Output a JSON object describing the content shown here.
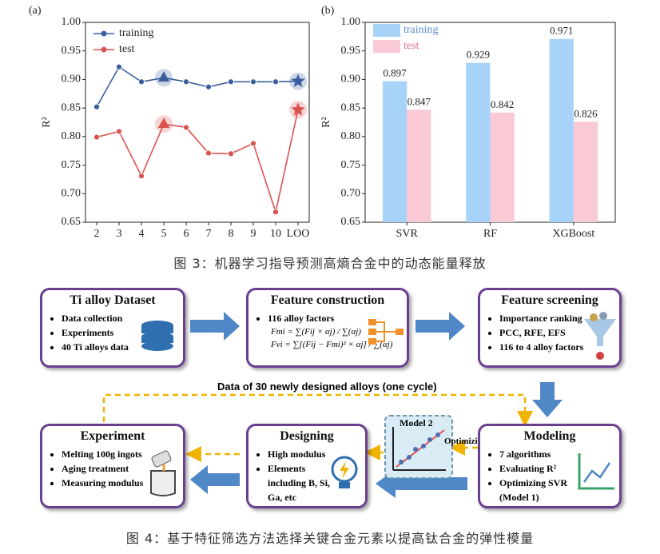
{
  "chart_data": [
    {
      "type": "line",
      "title": "(a)",
      "y_label": "R²",
      "categories": [
        "2",
        "3",
        "4",
        "5",
        "6",
        "7",
        "8",
        "9",
        "10",
        "LOO"
      ],
      "series": [
        {
          "name": "training",
          "color": "#3b5f9e",
          "values": [
            0.852,
            0.922,
            0.896,
            0.903,
            0.896,
            0.887,
            0.896,
            0.896,
            0.896,
            0.897
          ]
        },
        {
          "name": "test",
          "color": "#d9534f",
          "values": [
            0.799,
            0.809,
            0.731,
            0.822,
            0.816,
            0.771,
            0.77,
            0.788,
            0.668,
            0.847
          ]
        }
      ],
      "highlight_markers": [
        {
          "index": 3,
          "shape": "triangle"
        },
        {
          "index": 9,
          "shape": "star"
        }
      ],
      "ylim": [
        0.65,
        1.0
      ],
      "yticks": [
        0.65,
        {
          "value": 0.7,
          "label": "0.70"
        },
        0.75,
        {
          "value": 0.8,
          "label": "0.80"
        },
        0.85,
        {
          "value": 0.9,
          "label": "0.90"
        },
        0.95,
        {
          "value": 1.0,
          "label": "1.00"
        }
      ],
      "legend": "top-left"
    },
    {
      "type": "bar",
      "title": "(b)",
      "y_label": "R²",
      "categories": [
        "SVR",
        "RF",
        "XGBoost"
      ],
      "series": [
        {
          "name": "training",
          "color": "#a6d3f7",
          "values": [
            0.897,
            0.929,
            0.971
          ]
        },
        {
          "name": "test",
          "color": "#f9c9d5",
          "values": [
            0.847,
            0.842,
            0.826
          ]
        }
      ],
      "ylim": [
        0.65,
        1.0
      ],
      "yticks": [
        0.65,
        {
          "value": 0.7,
          "label": "0.70"
        },
        0.75,
        {
          "value": 0.8,
          "label": "0.80"
        },
        0.85,
        {
          "value": 0.9,
          "label": "0.90"
        },
        0.95,
        {
          "value": 1.0,
          "label": "1.00"
        }
      ],
      "legend": "top-left"
    }
  ],
  "figure3_caption": "图 3：机器学习指导预测高熵合金中的动态能量释放",
  "diagram": {
    "dataset": {
      "title": "Ti alloy Dataset",
      "items": [
        "Data collection",
        "Experiments",
        "40 Ti alloys data"
      ]
    },
    "construction": {
      "title": "Feature construction",
      "items": [
        "116 alloy factors"
      ],
      "formulas": [
        "Fmi = ∑(Fij × αj) / ∑(αj)",
        "Fvi = ∑[(Fij − Fmi)² × αj] / ∑(αj)"
      ]
    },
    "screening": {
      "title": "Feature screening",
      "items": [
        "Importance ranking",
        "PCC, RFE, EFS",
        "116 to 4 alloy factors"
      ]
    },
    "cycle_label": "Data of 30 newly designed alloys (one cycle)",
    "modeling": {
      "title": "Modeling",
      "items": [
        "7 algorithms",
        "Evaluating R²",
        "Optimizing SVR (Model 1)"
      ]
    },
    "model2": "Model 2",
    "optimizing": "Optimizing",
    "designing": {
      "title": "Designing",
      "items": [
        "High modulus",
        "Elements including B, Si, Ga, etc"
      ]
    },
    "experiment": {
      "title": "Experiment",
      "items": [
        "Melting 100g ingots",
        "Aging treatment",
        "Measuring modulus"
      ]
    }
  },
  "figure4_caption": "图 4：基于特征筛选方法选择关键合金元素以提高钛合金的弹性模量"
}
